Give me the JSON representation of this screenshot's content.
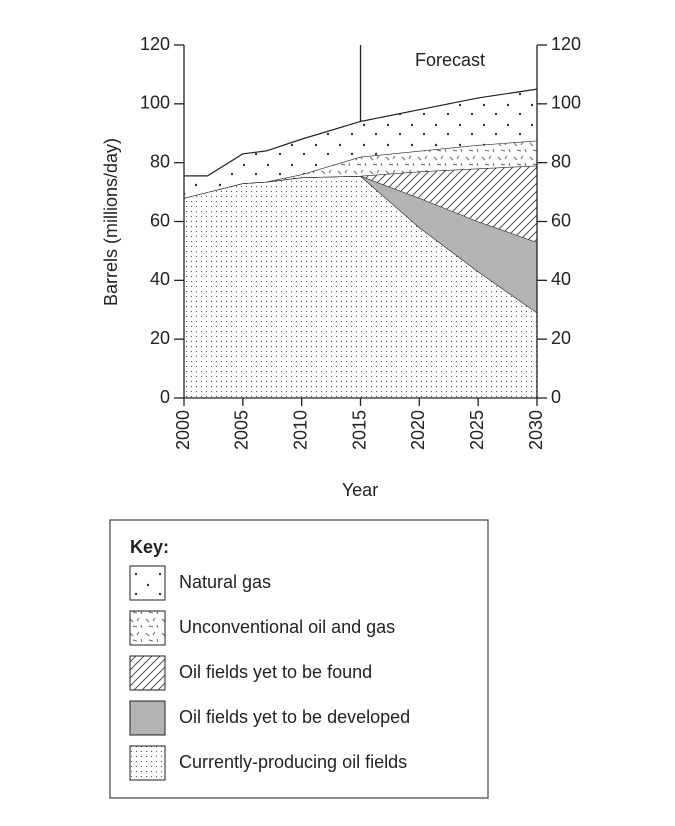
{
  "chart_data": {
    "type": "stacked-area",
    "y_label": "Barrels (millions/day)",
    "x_label": "Year",
    "annotation": "Forecast",
    "forecast_x": 2015,
    "legend_title": "Key:",
    "x": [
      2000,
      2002,
      2005,
      2007,
      2010,
      2015,
      2020,
      2025,
      2030
    ],
    "series": [
      {
        "name": "Currently-producing oil fields",
        "color": "#555555",
        "values": [
          68,
          70,
          73,
          73.5,
          75,
          75.5,
          58,
          43,
          29
        ]
      },
      {
        "name": "Oil fields yet to be developed",
        "color": "#b3b3b3",
        "values": [
          0,
          0,
          0,
          0,
          0,
          0,
          10,
          17,
          24
        ]
      },
      {
        "name": "Oil fields yet to be found",
        "color": "#555555",
        "values": [
          0,
          0,
          0,
          0,
          0,
          0,
          9,
          18,
          26
        ]
      },
      {
        "name": "Unconventional oil and gas",
        "color": "#555555",
        "values": [
          0,
          0,
          0,
          0,
          1,
          6.5,
          7,
          8,
          8.5
        ]
      },
      {
        "name": "Natural gas",
        "color": "#333333",
        "values": [
          7.5,
          5.5,
          10,
          10.5,
          12,
          12,
          14,
          16,
          17.5
        ]
      }
    ],
    "xlim": [
      2000,
      2030
    ],
    "xticks": [
      2000,
      2005,
      2010,
      2015,
      2020,
      2025,
      2030
    ],
    "ylim": [
      0,
      120
    ],
    "yticks": [
      0,
      20,
      40,
      60,
      80,
      100,
      120
    ],
    "y2lim": [
      0,
      120
    ],
    "y2ticks": [
      0,
      20,
      40,
      60,
      80,
      100,
      120
    ]
  }
}
